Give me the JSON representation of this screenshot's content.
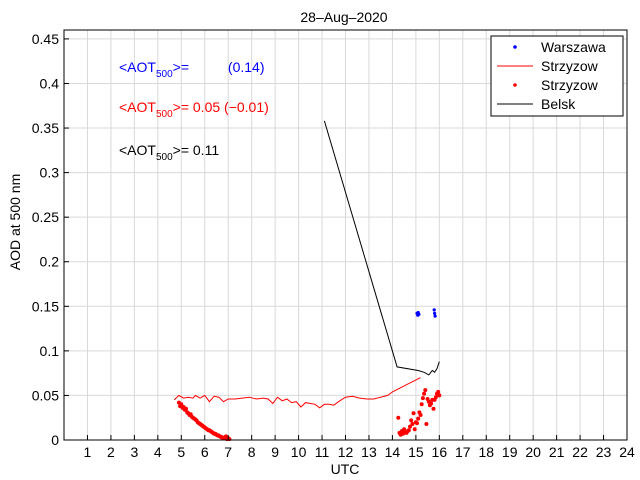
{
  "chart_data": {
    "type": "line",
    "title": "28–Aug–2020",
    "xlabel": "UTC",
    "ylabel": "AOD at 500 nm",
    "xlim": [
      0,
      24
    ],
    "ylim": [
      0,
      0.46
    ],
    "x_ticks": [
      1,
      2,
      3,
      4,
      5,
      6,
      7,
      8,
      9,
      10,
      11,
      12,
      13,
      14,
      15,
      16,
      17,
      18,
      19,
      20,
      21,
      22,
      23,
      24
    ],
    "y_ticks": [
      0,
      0.05,
      0.1,
      0.15,
      0.2,
      0.25,
      0.3,
      0.35,
      0.4,
      0.45
    ],
    "y_tick_labels": [
      "0",
      "0.05",
      "0.1",
      "0.15",
      "0.2",
      "0.25",
      "0.3",
      "0.35",
      "0.4",
      "0.45"
    ],
    "grid": true,
    "legend_position": "top-right",
    "annotations": [
      {
        "prefix": "<AOT",
        "sub": "500",
        "suffix": ">=          (0.14)",
        "color": "#0000ff"
      },
      {
        "prefix": "<AOT",
        "sub": "500",
        "suffix": ">= 0.05 (−0.01)",
        "color": "#ff0000"
      },
      {
        "prefix": "<AOT",
        "sub": "500",
        "suffix": ">= 0.11",
        "color": "#000000"
      }
    ],
    "series": [
      {
        "name": "Warszawa",
        "style": "points",
        "color": "#0000ff",
        "x": [
          15.05,
          15.08,
          15.1,
          15.13,
          15.78,
          15.8,
          15.82
        ],
        "y": [
          0.142,
          0.14,
          0.143,
          0.141,
          0.146,
          0.142,
          0.139
        ]
      },
      {
        "name": "Strzyzow",
        "style": "line",
        "color": "#ff0000",
        "x": [
          4.7,
          4.9,
          5.1,
          5.3,
          5.5,
          5.6,
          5.8,
          6.0,
          6.2,
          6.4,
          6.6,
          6.8,
          7.0,
          7.3,
          7.6,
          7.9,
          8.2,
          8.5,
          8.7,
          8.9,
          9.1,
          9.3,
          9.5,
          9.7,
          9.9,
          10.1,
          10.3,
          10.5,
          10.7,
          10.9,
          11.1,
          11.3,
          11.5,
          11.7,
          12.0,
          12.3,
          12.6,
          12.9,
          13.2,
          13.5,
          13.8,
          14.0,
          14.3,
          14.6,
          14.9,
          15.2
        ],
        "y": [
          0.045,
          0.05,
          0.047,
          0.048,
          0.047,
          0.05,
          0.047,
          0.05,
          0.043,
          0.049,
          0.048,
          0.043,
          0.046,
          0.046,
          0.047,
          0.048,
          0.046,
          0.047,
          0.046,
          0.041,
          0.048,
          0.044,
          0.046,
          0.042,
          0.043,
          0.037,
          0.042,
          0.041,
          0.04,
          0.036,
          0.04,
          0.04,
          0.039,
          0.043,
          0.048,
          0.049,
          0.047,
          0.046,
          0.046,
          0.048,
          0.05,
          0.054,
          0.058,
          0.062,
          0.066,
          0.07
        ]
      },
      {
        "name": "Strzyzow",
        "style": "points",
        "color": "#ff0000",
        "x": [
          4.9,
          4.95,
          5.0,
          5.05,
          5.1,
          5.15,
          5.2,
          5.25,
          5.3,
          5.35,
          5.4,
          5.45,
          5.5,
          5.55,
          5.6,
          5.65,
          5.7,
          5.75,
          5.8,
          5.85,
          5.9,
          5.95,
          6.0,
          6.05,
          6.1,
          6.15,
          6.2,
          6.25,
          6.3,
          6.35,
          6.4,
          6.45,
          6.5,
          6.55,
          6.6,
          6.65,
          6.7,
          6.75,
          6.8,
          6.85,
          6.9,
          6.95,
          7.0,
          7.05,
          14.25,
          14.3,
          14.35,
          14.4,
          14.45,
          14.5,
          14.55,
          14.6,
          14.65,
          14.7,
          14.75,
          14.8,
          14.85,
          14.9,
          14.95,
          15.0,
          15.05,
          15.1,
          15.15,
          15.2,
          15.25,
          15.3,
          15.35,
          15.4,
          15.45,
          15.5,
          15.55,
          15.6,
          15.65,
          15.7,
          15.75,
          15.8,
          15.85,
          15.9,
          15.95,
          16.0
        ],
        "y": [
          0.042,
          0.038,
          0.04,
          0.036,
          0.037,
          0.034,
          0.035,
          0.031,
          0.03,
          0.028,
          0.029,
          0.026,
          0.025,
          0.024,
          0.023,
          0.022,
          0.02,
          0.019,
          0.018,
          0.017,
          0.016,
          0.015,
          0.014,
          0.013,
          0.012,
          0.011,
          0.011,
          0.01,
          0.009,
          0.008,
          0.007,
          0.007,
          0.006,
          0.005,
          0.005,
          0.004,
          0.003,
          0.003,
          0.002,
          0.002,
          0.004,
          0.001,
          0.002,
          0.001,
          0.025,
          0.008,
          0.006,
          0.01,
          0.007,
          0.012,
          0.009,
          0.008,
          0.01,
          0.011,
          0.015,
          0.022,
          0.018,
          0.03,
          0.012,
          0.02,
          0.019,
          0.024,
          0.031,
          0.028,
          0.04,
          0.047,
          0.052,
          0.056,
          0.018,
          0.046,
          0.043,
          0.039,
          0.041,
          0.045,
          0.035,
          0.045,
          0.048,
          0.052,
          0.054,
          0.05
        ]
      },
      {
        "name": "Belsk",
        "style": "line",
        "color": "#000000",
        "x": [
          11.1,
          14.2,
          15.1,
          15.35,
          15.55,
          15.7,
          15.8,
          15.9,
          16.0
        ],
        "y": [
          0.358,
          0.082,
          0.078,
          0.076,
          0.073,
          0.078,
          0.076,
          0.08,
          0.088
        ]
      }
    ]
  }
}
